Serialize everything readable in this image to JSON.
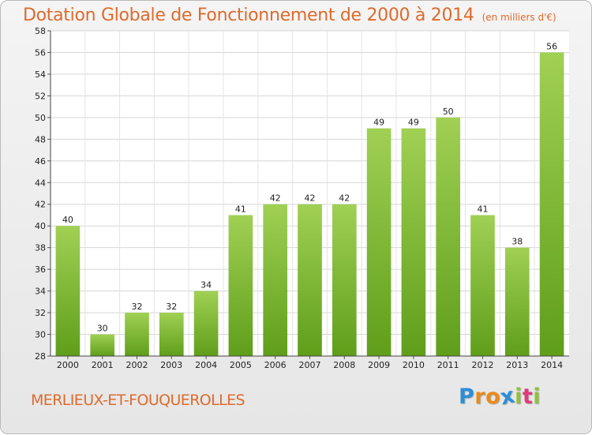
{
  "header": {
    "title": "Dotation Globale de Fonctionnement de 2000 à 2014",
    "subtitle": "(en milliers d'€)"
  },
  "footer": {
    "commune": "MERLIEUX-ET-FOUQUEROLLES",
    "logo_letters": [
      "P",
      "r",
      "o",
      "x",
      "i",
      "t",
      "i"
    ],
    "logo_colors": [
      "#2d8ed6",
      "#e98a1b",
      "#e98a1b",
      "#2d8ed6",
      "#8fc234",
      "#e03a7c",
      "#8fc234"
    ]
  },
  "chart_data": {
    "type": "bar",
    "title": "Dotation Globale de Fonctionnement de 2000 à 2014",
    "subtitle": "(en milliers d'€)",
    "categories": [
      "2000",
      "2001",
      "2002",
      "2003",
      "2004",
      "2005",
      "2006",
      "2007",
      "2008",
      "2009",
      "2010",
      "2011",
      "2012",
      "2013",
      "2014"
    ],
    "values": [
      40,
      30,
      32,
      32,
      34,
      41,
      42,
      42,
      42,
      49,
      49,
      50,
      41,
      38,
      56
    ],
    "ylim": [
      28,
      58
    ],
    "yticks": [
      28,
      30,
      32,
      34,
      36,
      38,
      40,
      42,
      44,
      46,
      48,
      50,
      52,
      54,
      56,
      58
    ],
    "grid": true,
    "bar_color_top": "#a0d054",
    "bar_color_bottom": "#5f9e1a",
    "xlabel": "",
    "ylabel": ""
  }
}
